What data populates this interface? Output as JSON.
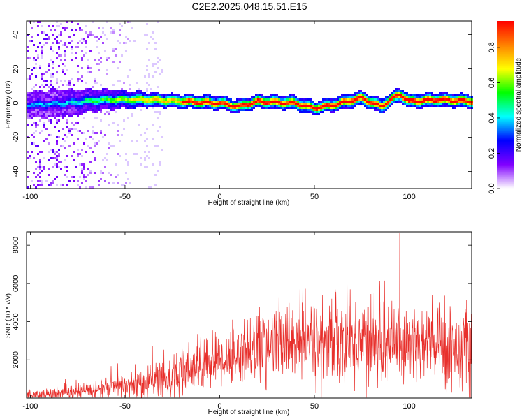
{
  "figure": {
    "title": "C2E2.2025.048.15.51.E15"
  },
  "chart_data": [
    {
      "type": "heatmap",
      "title": "C2E2.2025.048.15.51.E15",
      "xlabel": "Height of straight line (km)",
      "ylabel": "Frequency (Hz)",
      "xlim": [
        -102,
        133
      ],
      "ylim": [
        -50,
        48
      ],
      "xticks": [
        -100,
        -50,
        0,
        50,
        100
      ],
      "yticks": [
        -40,
        -20,
        0,
        20,
        40
      ],
      "ridge_frequency_hz": [
        {
          "x": -100,
          "y": -1
        },
        {
          "x": -80,
          "y": 0
        },
        {
          "x": -60,
          "y": 2
        },
        {
          "x": -40,
          "y": 2
        },
        {
          "x": -20,
          "y": 1
        },
        {
          "x": 0,
          "y": 0
        },
        {
          "x": 10,
          "y": -2
        },
        {
          "x": 20,
          "y": 1
        },
        {
          "x": 40,
          "y": 0
        },
        {
          "x": 50,
          "y": -3
        },
        {
          "x": 60,
          "y": -1
        },
        {
          "x": 75,
          "y": 3
        },
        {
          "x": 85,
          "y": -2
        },
        {
          "x": 95,
          "y": 5
        },
        {
          "x": 100,
          "y": 1
        },
        {
          "x": 115,
          "y": 2
        },
        {
          "x": 133,
          "y": 1
        }
      ],
      "colorbar": {
        "label": "Normalized spectral amplitude",
        "range": [
          0.0,
          0.95
        ],
        "ticks": [
          "0.0",
          "0.2",
          "0.4",
          "0.6",
          "0.8"
        ],
        "colormap": [
          "#ffffff",
          "#8000ff",
          "#0000ff",
          "#00ffff",
          "#00ff00",
          "#ffff00",
          "#ff8000",
          "#ff0000"
        ]
      }
    },
    {
      "type": "line",
      "xlabel": "Height of straight line (km)",
      "ylabel": "SNR (10 * v/v)",
      "xlim": [
        -102,
        133
      ],
      "ylim": [
        0,
        8700
      ],
      "xticks": [
        -100,
        -50,
        0,
        50,
        100
      ],
      "yticks": [
        2000,
        4000,
        6000,
        8000
      ],
      "color": "#e8302c",
      "envelope": [
        {
          "x": -102,
          "mean": 150,
          "spread": 150
        },
        {
          "x": -80,
          "mean": 250,
          "spread": 250
        },
        {
          "x": -60,
          "mean": 500,
          "spread": 400
        },
        {
          "x": -40,
          "mean": 800,
          "spread": 600
        },
        {
          "x": -20,
          "mean": 1200,
          "spread": 800
        },
        {
          "x": -5,
          "mean": 1900,
          "spread": 900
        },
        {
          "x": 5,
          "mean": 2100,
          "spread": 900
        },
        {
          "x": 20,
          "mean": 2700,
          "spread": 1200
        },
        {
          "x": 40,
          "mean": 3000,
          "spread": 1400
        },
        {
          "x": 60,
          "mean": 2900,
          "spread": 1500
        },
        {
          "x": 80,
          "mean": 3000,
          "spread": 1500
        },
        {
          "x": 100,
          "mean": 2800,
          "spread": 1500
        },
        {
          "x": 133,
          "mean": 2600,
          "spread": 1400
        }
      ],
      "peak": {
        "x": 95,
        "y": 8650
      }
    }
  ]
}
